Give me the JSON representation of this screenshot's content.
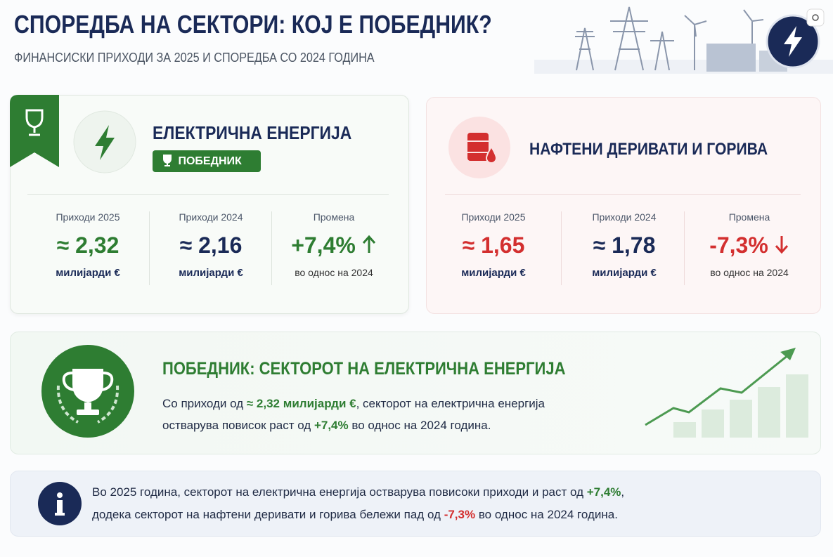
{
  "header": {
    "title": "СПОРЕДБА НА СЕКТОРИ: КОЈ Е ПОБЕДНИК?",
    "subtitle": "ФИНАНСИСКИ ПРИХОДИ ЗА 2025 И СПОРЕДБА СО 2024 ГОДИНА"
  },
  "sectors": [
    {
      "title": "ЕЛЕКТРИЧНА ЕНЕРГИЈА",
      "badge": "ПОБЕДНИК",
      "metrics": [
        {
          "label": "Приходи 2025",
          "value": "≈ 2,32",
          "unit": "милијарди €"
        },
        {
          "label": "Приходи 2024",
          "value": "≈ 2,16",
          "unit": "милијарди €"
        },
        {
          "label": "Промена",
          "value": "+7,4%",
          "unit": "во однос на 2024"
        }
      ]
    },
    {
      "title": "НАФТЕНИ ДЕРИВАТИ И ГОРИВА",
      "metrics": [
        {
          "label": "Приходи 2025",
          "value": "≈ 1,65",
          "unit": "милијарди €"
        },
        {
          "label": "Приходи 2024",
          "value": "≈ 1,78",
          "unit": "милијарди €"
        },
        {
          "label": "Промена",
          "value": "-7,3%",
          "unit": "во однос на 2024"
        }
      ]
    }
  ],
  "winner": {
    "title": "ПОБЕДНИК: СЕКТОРОТ НА ЕЛЕКТРИЧНА ЕНЕРГИЈА",
    "lines": [
      [
        "Со приходи од ",
        "≈ 2,32 милијарди €",
        ", секторот на електрична енергија"
      ],
      [
        "остварува повисок раст од ",
        "+7,4%",
        " во однос на 2024 година."
      ]
    ]
  },
  "info": {
    "lines": [
      [
        "Во 2025 година, секторот на електрична енергија остварува повисоки приходи и раст од ",
        "+7,4%",
        ","
      ],
      [
        "додека секторот на нафтени деривати и горива бележи пад од ",
        "-7,3%",
        " во однос на 2024 година."
      ]
    ]
  }
}
